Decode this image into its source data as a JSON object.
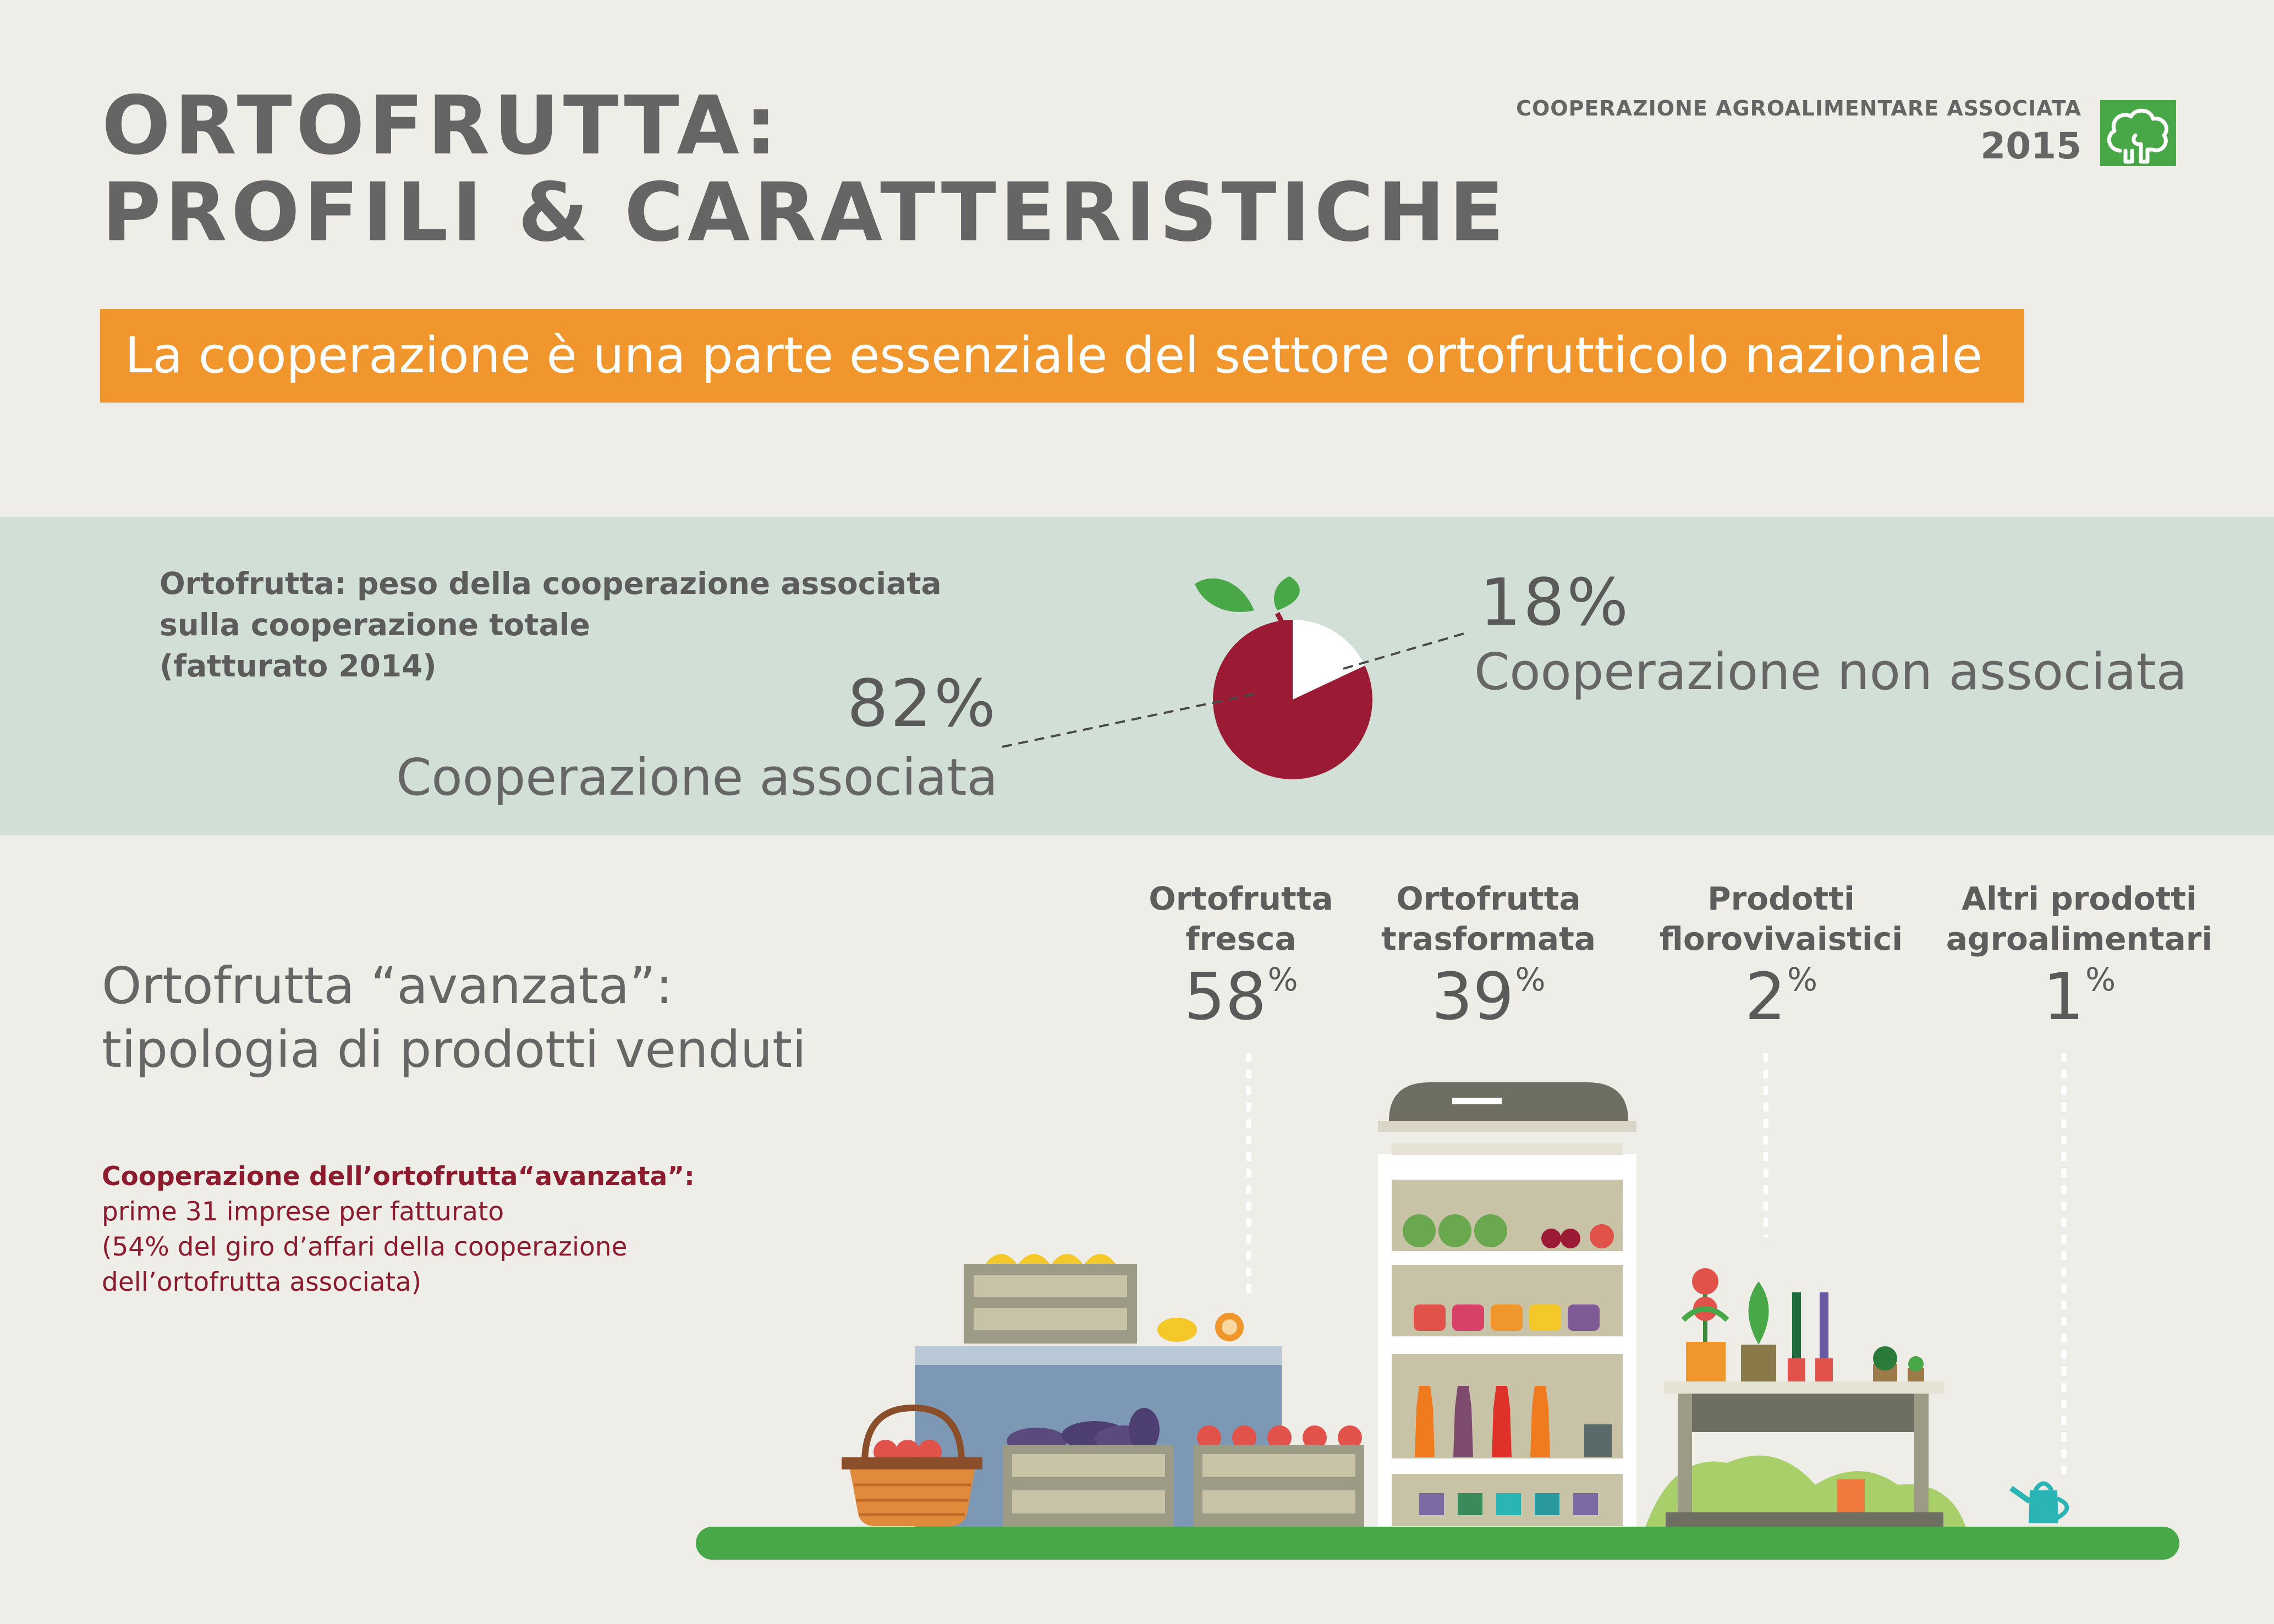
{
  "header": {
    "title_line1": "ORTOFRUTTA:",
    "title_line2": "PROFILI & CARATTERISTICHE",
    "org_name": "COOPERAZIONE AGROALIMENTARE ASSOCIATA",
    "year": "2015",
    "logo_icon": "tree-logo-icon"
  },
  "banner": {
    "text": "La cooperazione è una parte essenziale del settore ortofrutticolo nazionale"
  },
  "pie_section": {
    "caption_line1": "Ortofrutta: peso della cooperazione associata",
    "caption_line2": "sulla cooperazione totale",
    "caption_line3": "(fatturato 2014)",
    "associated": {
      "pct": "82%",
      "label": "Cooperazione associata",
      "value": 82,
      "color": "#9b1b34"
    },
    "non_associated": {
      "pct": "18%",
      "label": "Cooperazione non associata",
      "value": 18,
      "color": "#ffffff"
    }
  },
  "products": {
    "title_line1": "Ortofrutta “avanzata”:",
    "title_line2": "tipologia di prodotti venduti",
    "note_bold": "Cooperazione dell’ortofrutta“avanzata”:",
    "note_line1": "prime 31 imprese per fatturato",
    "note_line2": "(54% del giro d’affari della cooperazione",
    "note_line3": "dell’ortofrutta associata)",
    "categories": [
      {
        "name_line1": "Ortofrutta",
        "name_line2": "fresca",
        "value": "58",
        "unit": "%"
      },
      {
        "name_line1": "Ortofrutta",
        "name_line2": "trasformata",
        "value": "39",
        "unit": "%"
      },
      {
        "name_line1": "Prodotti",
        "name_line2": "florovivaistici",
        "value": "2",
        "unit": "%"
      },
      {
        "name_line1": "Altri prodotti",
        "name_line2": "agroalimentari",
        "value": "1",
        "unit": "%"
      }
    ]
  },
  "colors": {
    "background": "#efede8",
    "banner": "#f0962d",
    "band": "#d2dfd7",
    "accent_green": "#48a847",
    "pie_red": "#9b1b34",
    "note_red": "#8c1b2e"
  }
}
